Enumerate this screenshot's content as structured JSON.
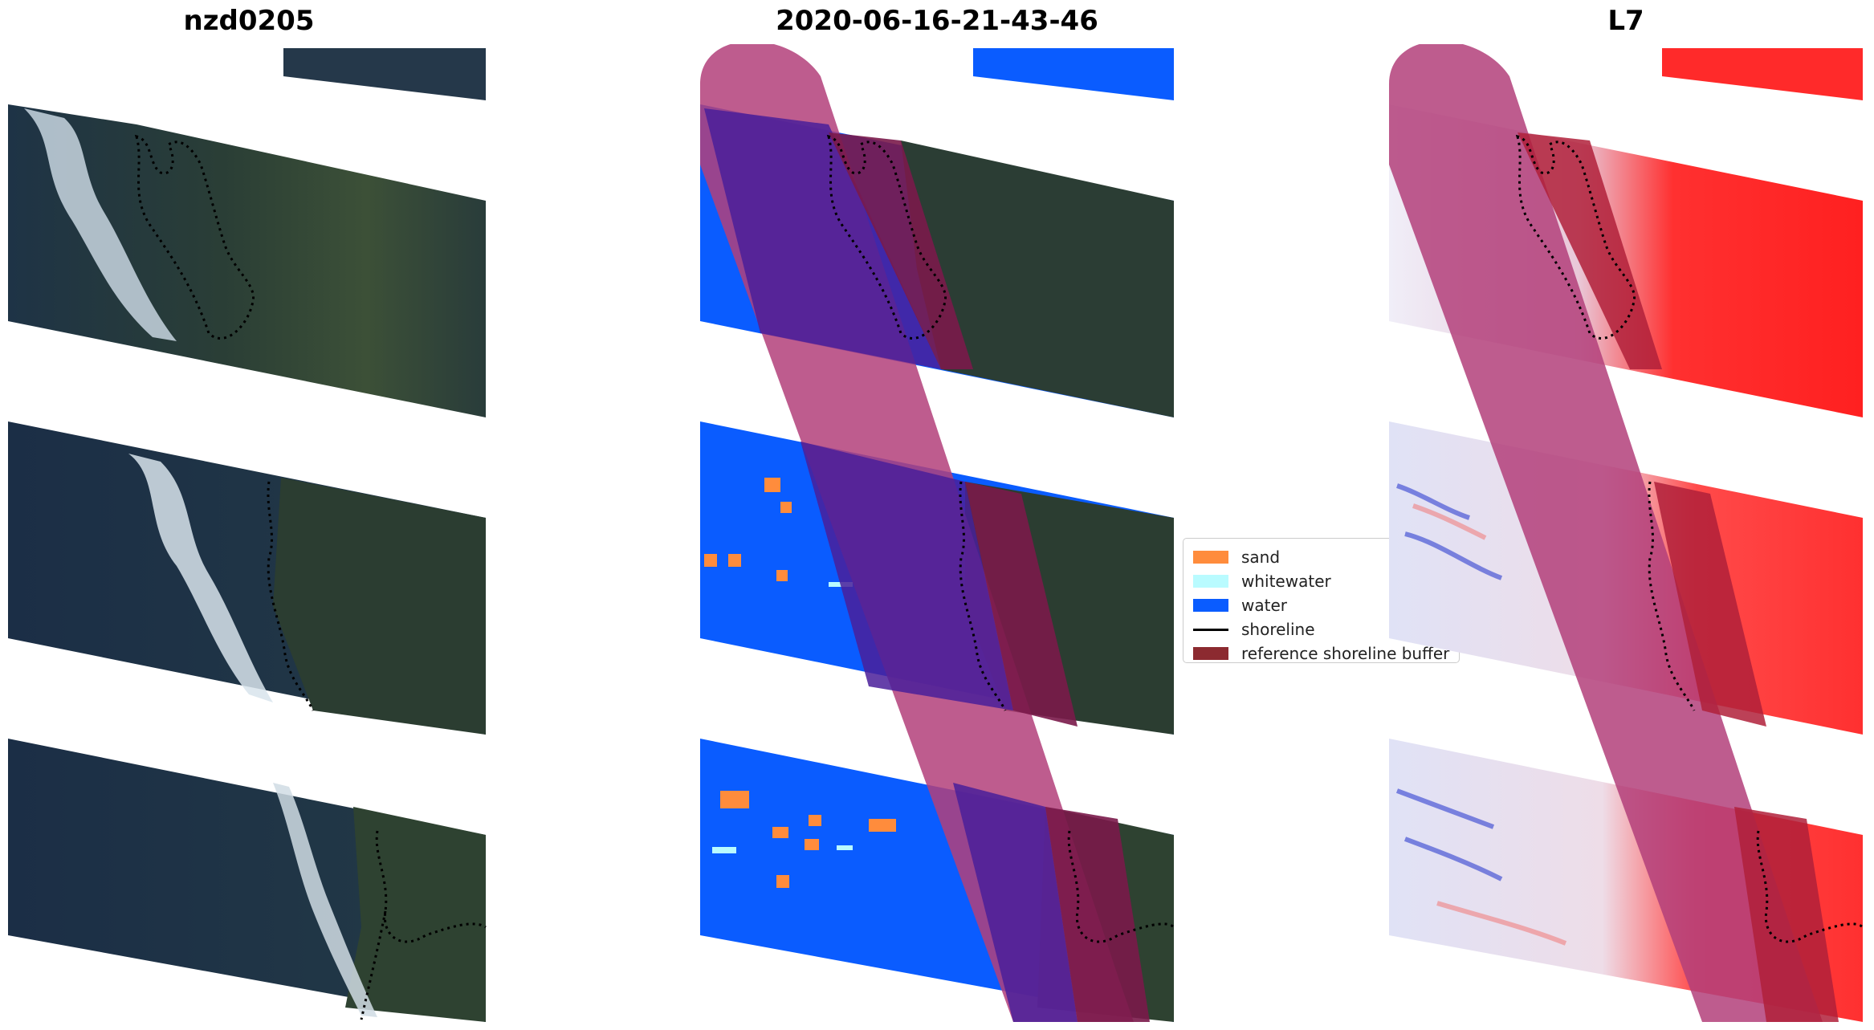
{
  "panels": [
    {
      "title": "nzd0205"
    },
    {
      "title": "2020-06-16-21-43-46"
    },
    {
      "title": "L7"
    }
  ],
  "legend": {
    "items": [
      {
        "label": "sand",
        "color": "#ff8c3c",
        "kind": "patch"
      },
      {
        "label": "whitewater",
        "color": "#b9fbff",
        "kind": "patch"
      },
      {
        "label": "water",
        "color": "#0a5cff",
        "kind": "patch"
      },
      {
        "label": "shoreline",
        "color": "#000000",
        "kind": "line"
      },
      {
        "label": "reference shoreline buffer",
        "color": "#8c2a30",
        "kind": "patch"
      }
    ]
  },
  "colors": {
    "land": "#2c3d32",
    "sea": "#1c2f48",
    "surf": "#d6e2ea",
    "water_class": "#0a5cff",
    "sand_class": "#ff8c3c",
    "buffer": "#b3407a",
    "buffer_overlay_land": "#4a1f9a",
    "index_positive": "#ff1a1a",
    "index_negative": "#2030d0"
  }
}
